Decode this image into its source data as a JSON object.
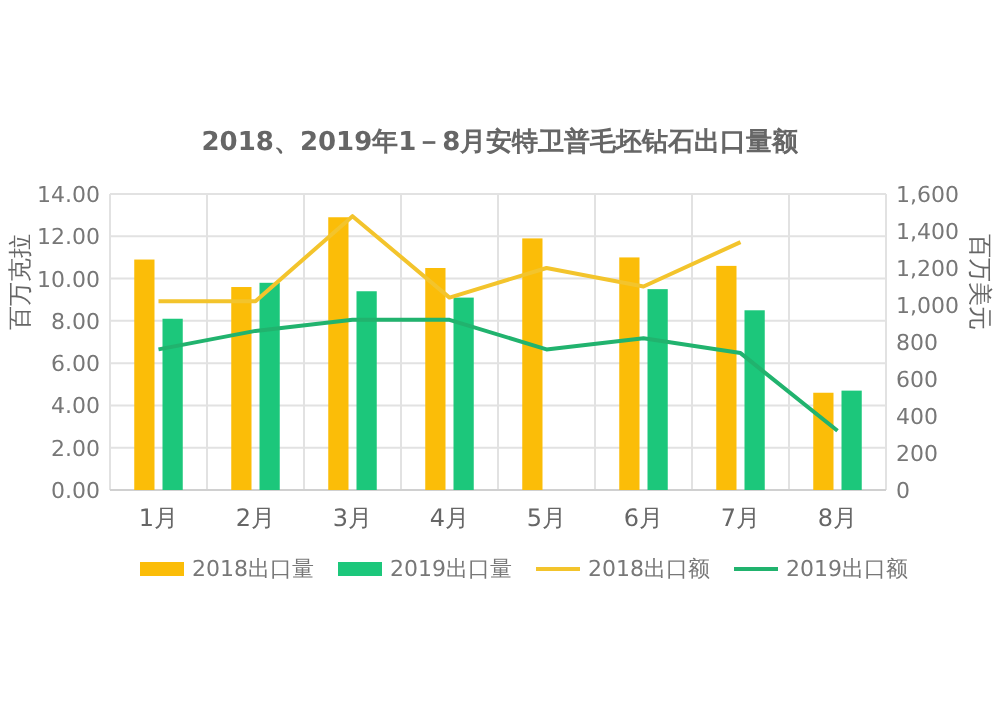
{
  "chart_data": {
    "type": "bar",
    "title": "2018、2019年1－8月安特卫普毛坯钻石出口量额",
    "ylabel": "百万克拉",
    "y2label": "百万美元",
    "categories": [
      "1月",
      "2月",
      "3月",
      "4月",
      "5月",
      "6月",
      "7月",
      "8月"
    ],
    "series": [
      {
        "name": "2018出口量",
        "color": "#fbbd08",
        "values": [
          10.9,
          9.6,
          12.9,
          10.5,
          11.9,
          11.0,
          10.6,
          4.6
        ]
      },
      {
        "name": "2019出口量",
        "color": "#1cc77b",
        "values": [
          8.1,
          9.8,
          9.4,
          9.1,
          null,
          9.5,
          8.5,
          4.7
        ]
      },
      {
        "name": "2018出口额",
        "type": "line",
        "axis": "y2",
        "color": "#f3c42c",
        "values": [
          1020,
          1020,
          1480,
          1040,
          1200,
          1100,
          1340,
          null
        ]
      },
      {
        "name": "2019出口额",
        "type": "line",
        "axis": "y2",
        "color": "#21b36e",
        "values": [
          760,
          860,
          920,
          920,
          760,
          820,
          740,
          320
        ]
      }
    ],
    "ylim": [
      0,
      14
    ],
    "yticks": [
      {
        "value": 0,
        "label": "0.00"
      },
      {
        "value": 2,
        "label": "2.00"
      },
      {
        "value": 4,
        "label": "4.00"
      },
      {
        "value": 6,
        "label": "6.00"
      },
      {
        "value": 8,
        "label": "8.00"
      },
      {
        "value": 10,
        "label": "10.00"
      },
      {
        "value": 12,
        "label": "12.00"
      },
      {
        "value": 14,
        "label": "14.00"
      }
    ],
    "y2lim": [
      0,
      1600
    ],
    "y2ticks": [
      0,
      200,
      400,
      600,
      800,
      {
        "value": 1000,
        "label": "1,000"
      },
      {
        "value": 1200,
        "label": "1,200"
      },
      {
        "value": 1400,
        "label": "1,400"
      },
      {
        "value": 1600,
        "label": "1,600"
      }
    ],
    "grid": true,
    "legend": "bottom",
    "marker": "none",
    "line_style": "solid"
  }
}
